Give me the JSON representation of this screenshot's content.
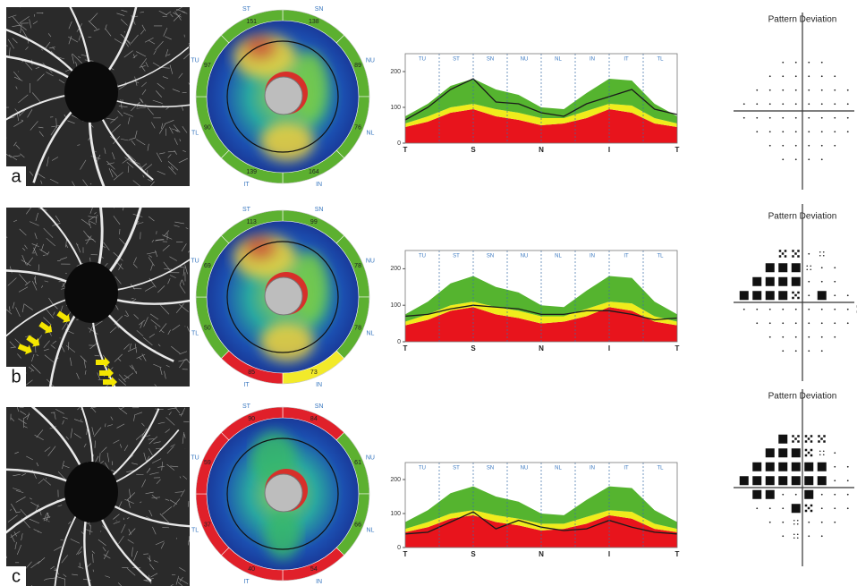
{
  "panels": [
    {
      "label": "a",
      "rnfl_map": {
        "sectors": [
          {
            "label": "SN",
            "value": 138,
            "color": "#5cb030"
          },
          {
            "label": "NU",
            "value": 89,
            "color": "#5cb030"
          },
          {
            "label": "NL",
            "value": 76,
            "color": "#5cb030"
          },
          {
            "label": "IN",
            "value": 164,
            "color": "#5cb030"
          },
          {
            "label": "IT",
            "value": 139,
            "color": "#5cb030"
          },
          {
            "label": "TL",
            "value": 90,
            "color": "#5cb030"
          },
          {
            "label": "TU",
            "value": 97,
            "color": "#5cb030"
          },
          {
            "label": "ST",
            "value": 151,
            "color": "#5cb030"
          }
        ]
      },
      "pattern_deviation": {
        "title": "Pattern Deviation"
      }
    },
    {
      "label": "b",
      "rnfl_map": {
        "sectors": [
          {
            "label": "SN",
            "value": 99,
            "color": "#5cb030"
          },
          {
            "label": "NU",
            "value": 78,
            "color": "#5cb030"
          },
          {
            "label": "NL",
            "value": 78,
            "color": "#5cb030"
          },
          {
            "label": "IN",
            "value": 73,
            "color": "#f2ea2a"
          },
          {
            "label": "IT",
            "value": 85,
            "color": "#e0202a"
          },
          {
            "label": "TL",
            "value": 50,
            "color": "#5cb030"
          },
          {
            "label": "TU",
            "value": 69,
            "color": "#5cb030"
          },
          {
            "label": "ST",
            "value": 113,
            "color": "#5cb030"
          }
        ]
      },
      "pattern_deviation": {
        "title": "Pattern Deviation"
      }
    },
    {
      "label": "c",
      "rnfl_map": {
        "sectors": [
          {
            "label": "SN",
            "value": 84,
            "color": "#e0202a"
          },
          {
            "label": "NU",
            "value": 61,
            "color": "#5cb030"
          },
          {
            "label": "NL",
            "value": 66,
            "color": "#5cb030"
          },
          {
            "label": "IN",
            "value": 54,
            "color": "#e0202a"
          },
          {
            "label": "IT",
            "value": 40,
            "color": "#e0202a"
          },
          {
            "label": "TL",
            "value": 37,
            "color": "#e0202a"
          },
          {
            "label": "TU",
            "value": 59,
            "color": "#e0202a"
          },
          {
            "label": "ST",
            "value": 90,
            "color": "#e0202a"
          }
        ]
      },
      "pattern_deviation": {
        "title": "Pattern Deviation"
      }
    }
  ],
  "chart_data": [
    {
      "type": "area",
      "categories": [
        "T",
        null,
        null,
        "S",
        null,
        null,
        "N",
        null,
        null,
        "I",
        null,
        null,
        "T"
      ],
      "sectors": [
        "TU",
        "ST",
        "SN",
        "NU",
        "NL",
        "IN",
        "IT",
        "TL"
      ],
      "ylim": [
        0,
        250
      ],
      "yticks": [
        0,
        100,
        200
      ],
      "series": [
        {
          "type": "area",
          "color": "#e8141c",
          "values": [
            45,
            60,
            85,
            95,
            75,
            65,
            50,
            55,
            70,
            95,
            85,
            55,
            45
          ]
        },
        {
          "type": "area",
          "color": "#f0ec1c",
          "values": [
            55,
            75,
            100,
            110,
            95,
            85,
            70,
            70,
            90,
            110,
            105,
            70,
            55
          ]
        },
        {
          "type": "area",
          "color": "#55b42f",
          "values": [
            75,
            110,
            160,
            180,
            150,
            135,
            100,
            95,
            140,
            180,
            175,
            110,
            75
          ]
        },
        {
          "type": "line",
          "color": "#1a1a1a",
          "values": [
            65,
            100,
            150,
            180,
            115,
            110,
            85,
            75,
            110,
            130,
            150,
            95,
            80
          ]
        }
      ]
    },
    {
      "type": "area",
      "categories": [
        "T",
        null,
        null,
        "S",
        null,
        null,
        "N",
        null,
        null,
        "I",
        null,
        null,
        "T"
      ],
      "sectors": [
        "TU",
        "ST",
        "SN",
        "NU",
        "NL",
        "IN",
        "IT",
        "TL"
      ],
      "ylim": [
        0,
        250
      ],
      "yticks": [
        0,
        100,
        200
      ],
      "series": [
        {
          "type": "area",
          "color": "#e8141c",
          "values": [
            45,
            60,
            85,
            95,
            75,
            65,
            50,
            55,
            70,
            95,
            85,
            55,
            45
          ]
        },
        {
          "type": "area",
          "color": "#f0ec1c",
          "values": [
            55,
            75,
            100,
            110,
            95,
            85,
            70,
            70,
            90,
            110,
            105,
            70,
            55
          ]
        },
        {
          "type": "area",
          "color": "#55b42f",
          "values": [
            75,
            110,
            160,
            180,
            150,
            135,
            100,
            95,
            140,
            180,
            175,
            110,
            75
          ]
        },
        {
          "type": "line",
          "color": "#1a1a1a",
          "values": [
            70,
            75,
            90,
            100,
            95,
            90,
            75,
            75,
            85,
            85,
            75,
            60,
            65
          ]
        }
      ]
    },
    {
      "type": "area",
      "categories": [
        "T",
        null,
        null,
        "S",
        null,
        null,
        "N",
        null,
        null,
        "I",
        null,
        null,
        "T"
      ],
      "sectors": [
        "TU",
        "ST",
        "SN",
        "NU",
        "NL",
        "IN",
        "IT",
        "TL"
      ],
      "ylim": [
        0,
        250
      ],
      "yticks": [
        0,
        100,
        200
      ],
      "series": [
        {
          "type": "area",
          "color": "#e8141c",
          "values": [
            45,
            60,
            85,
            95,
            75,
            65,
            50,
            55,
            70,
            95,
            85,
            55,
            45
          ]
        },
        {
          "type": "area",
          "color": "#f0ec1c",
          "values": [
            55,
            75,
            100,
            110,
            95,
            85,
            70,
            70,
            90,
            110,
            105,
            70,
            55
          ]
        },
        {
          "type": "area",
          "color": "#55b42f",
          "values": [
            75,
            110,
            160,
            180,
            150,
            135,
            100,
            95,
            140,
            180,
            175,
            110,
            75
          ]
        },
        {
          "type": "line",
          "color": "#1a1a1a",
          "values": [
            40,
            45,
            75,
            105,
            55,
            80,
            60,
            50,
            55,
            80,
            60,
            45,
            40
          ]
        }
      ]
    }
  ]
}
